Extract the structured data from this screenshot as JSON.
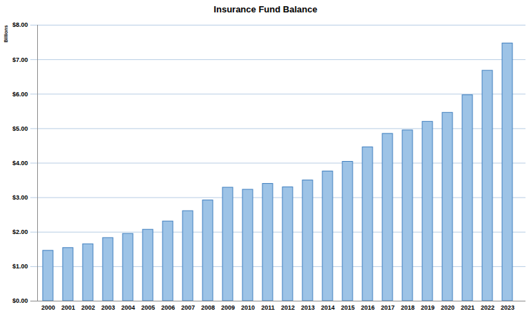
{
  "chart_data": {
    "type": "bar",
    "title": "Insurance Fund Balance",
    "y_label": "Billions",
    "categories": [
      "2000",
      "2001",
      "2002",
      "2003",
      "2004",
      "2005",
      "2006",
      "2007",
      "2008",
      "2009",
      "2010",
      "2011",
      "2012",
      "2013",
      "2014",
      "2015",
      "2016",
      "2017",
      "2018",
      "2019",
      "2020",
      "2021",
      "2022",
      "2023"
    ],
    "values": [
      1.46,
      1.54,
      1.65,
      1.83,
      1.95,
      2.07,
      2.31,
      2.61,
      2.92,
      3.29,
      3.23,
      3.4,
      3.3,
      3.5,
      3.76,
      4.04,
      4.46,
      4.85,
      4.95,
      5.2,
      5.46,
      5.97,
      6.68,
      7.47
    ],
    "color": "#9dc3e6",
    "ylim": [
      0,
      8
    ],
    "yticks": [
      {
        "value": 0,
        "label": "$0.00"
      },
      {
        "value": 1,
        "label": "$1.00"
      },
      {
        "value": 2,
        "label": "$2.00"
      },
      {
        "value": 3,
        "label": "$3.00"
      },
      {
        "value": 4,
        "label": "$4.00"
      },
      {
        "value": 5,
        "label": "$5.00"
      },
      {
        "value": 6,
        "label": "$6.00"
      },
      {
        "value": 7,
        "label": "$7.00"
      },
      {
        "value": 8,
        "label": "$8.00"
      }
    ],
    "grid": true
  }
}
